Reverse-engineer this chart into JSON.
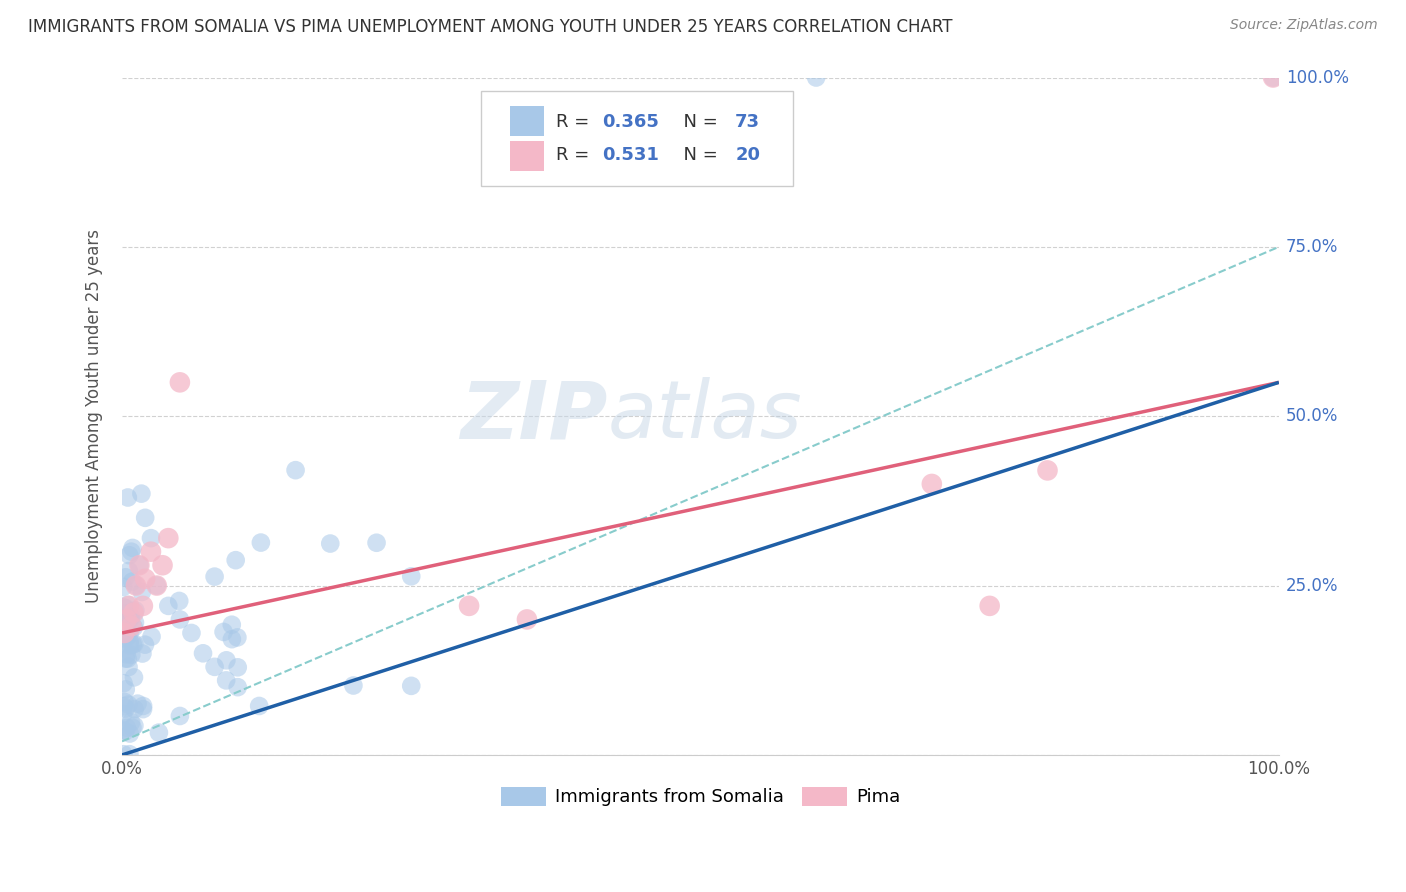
{
  "title": "IMMIGRANTS FROM SOMALIA VS PIMA UNEMPLOYMENT AMONG YOUTH UNDER 25 YEARS CORRELATION CHART",
  "source": "Source: ZipAtlas.com",
  "ylabel": "Unemployment Among Youth under 25 years",
  "legend_labels": [
    "Immigrants from Somalia",
    "Pima"
  ],
  "r_somalia": 0.365,
  "n_somalia": 73,
  "r_pima": 0.531,
  "n_pima": 20,
  "color_somalia": "#a8c8e8",
  "color_pima": "#f4b8c8",
  "color_somalia_line": "#1f5fa6",
  "color_pima_line": "#e0607a",
  "color_dashed_line": "#88cccc",
  "watermark_color": "#d0dde8",
  "xlim": [
    0,
    1
  ],
  "ylim": [
    0,
    1
  ],
  "somalia_trend_start": 0.0,
  "somalia_trend_end": 0.55,
  "pima_trend_start": 0.18,
  "pima_trend_end": 0.55,
  "dash_trend_start": 0.02,
  "dash_trend_end": 0.75,
  "figsize": [
    14.06,
    8.92
  ],
  "dpi": 100
}
